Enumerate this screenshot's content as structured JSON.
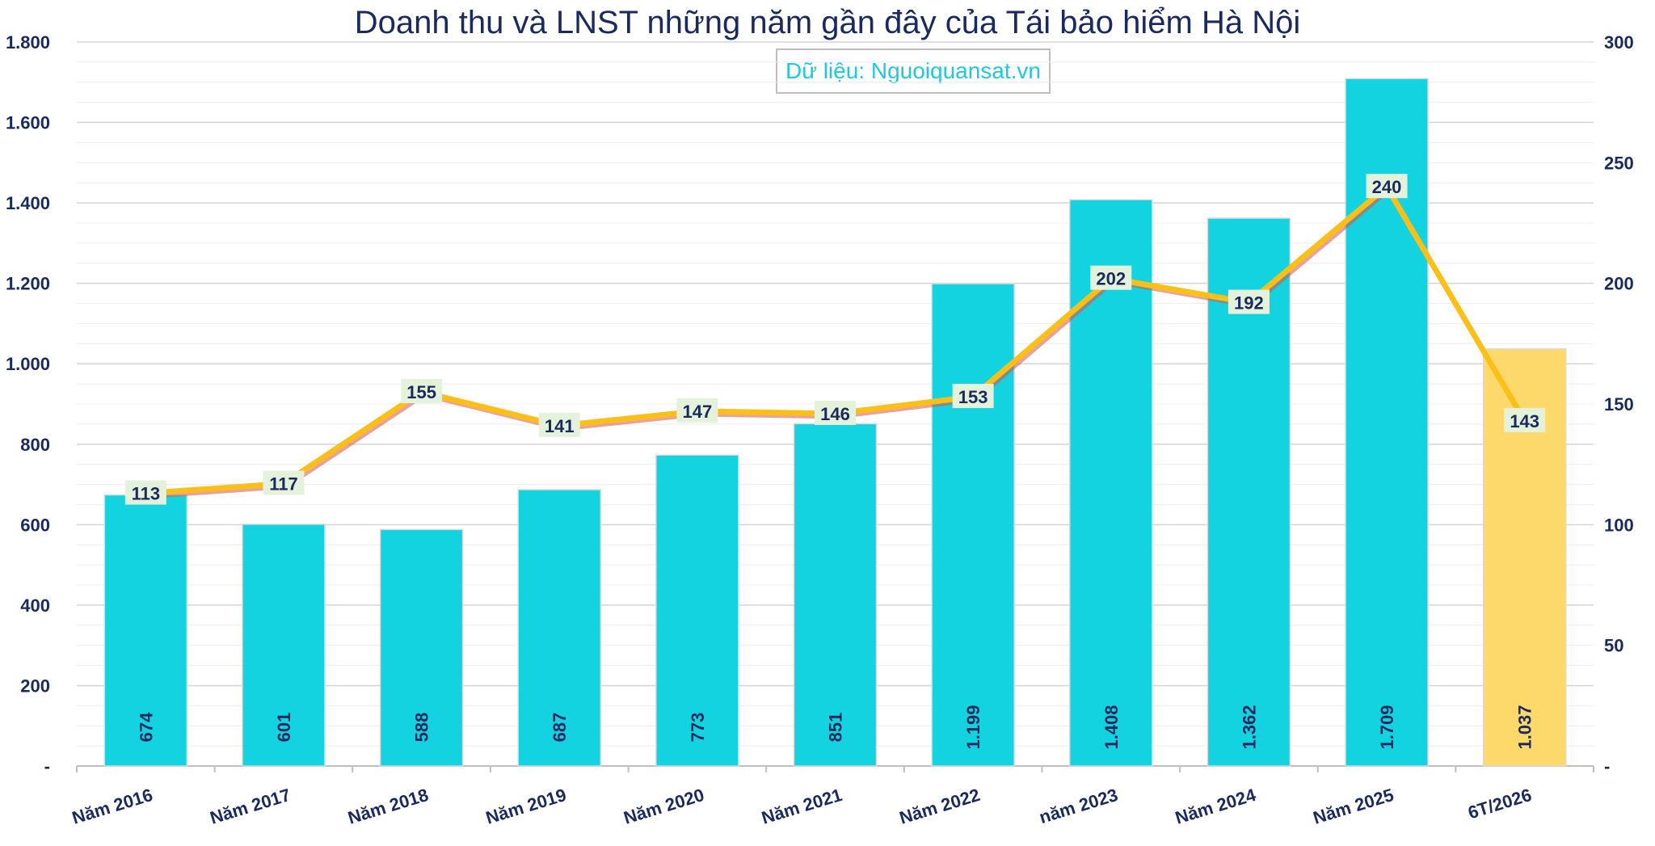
{
  "chart_data": {
    "type": "bar",
    "title": "Doanh thu và LNST những năm gần đây của Tái bảo hiểm Hà Nội",
    "source_label": "Dữ liệu: Nguoiquansat.vn",
    "categories": [
      "Năm 2016",
      "Năm 2017",
      "Năm 2018",
      "Năm 2019",
      "Năm 2020",
      "Năm 2021",
      "Năm 2022",
      "năm 2023",
      "Năm 2024",
      "Năm 2025",
      "6T/2026"
    ],
    "series": [
      {
        "type": "bar",
        "axis": "left",
        "values": [
          674,
          601,
          588,
          687,
          773,
          851,
          1199,
          1408,
          1362,
          1709,
          1037
        ],
        "labels": [
          "674",
          "601",
          "588",
          "687",
          "773",
          "851",
          "1.199",
          "1.408",
          "1.362",
          "1.709",
          "1.037"
        ],
        "colors": [
          "#13d3e0",
          "#13d3e0",
          "#13d3e0",
          "#13d3e0",
          "#13d3e0",
          "#13d3e0",
          "#13d3e0",
          "#13d3e0",
          "#13d3e0",
          "#13d3e0",
          "#fdd86b"
        ]
      },
      {
        "type": "line",
        "axis": "right",
        "values": [
          113,
          117,
          155,
          141,
          147,
          146,
          153,
          202,
          192,
          240,
          143
        ],
        "labels": [
          "113",
          "117",
          "155",
          "141",
          "147",
          "146",
          "153",
          "202",
          "192",
          "240",
          "143"
        ],
        "color": "#fbbf1a",
        "shadow_color": "#d9534f"
      }
    ],
    "y_left": {
      "lim": [
        0,
        1800
      ],
      "ticks": [
        0,
        200,
        400,
        600,
        800,
        1000,
        1200,
        1400,
        1600,
        1800
      ],
      "tick_labels": [
        "-",
        "200",
        "400",
        "600",
        "800",
        "1.000",
        "1.200",
        "1.400",
        "1.600",
        "1.800"
      ]
    },
    "y_right": {
      "lim": [
        0,
        300
      ],
      "ticks": [
        0,
        50,
        100,
        150,
        200,
        250,
        300
      ],
      "tick_labels": [
        "-",
        "50",
        "100",
        "150",
        "200",
        "250",
        "300"
      ]
    },
    "grid": true,
    "legend": "none"
  }
}
